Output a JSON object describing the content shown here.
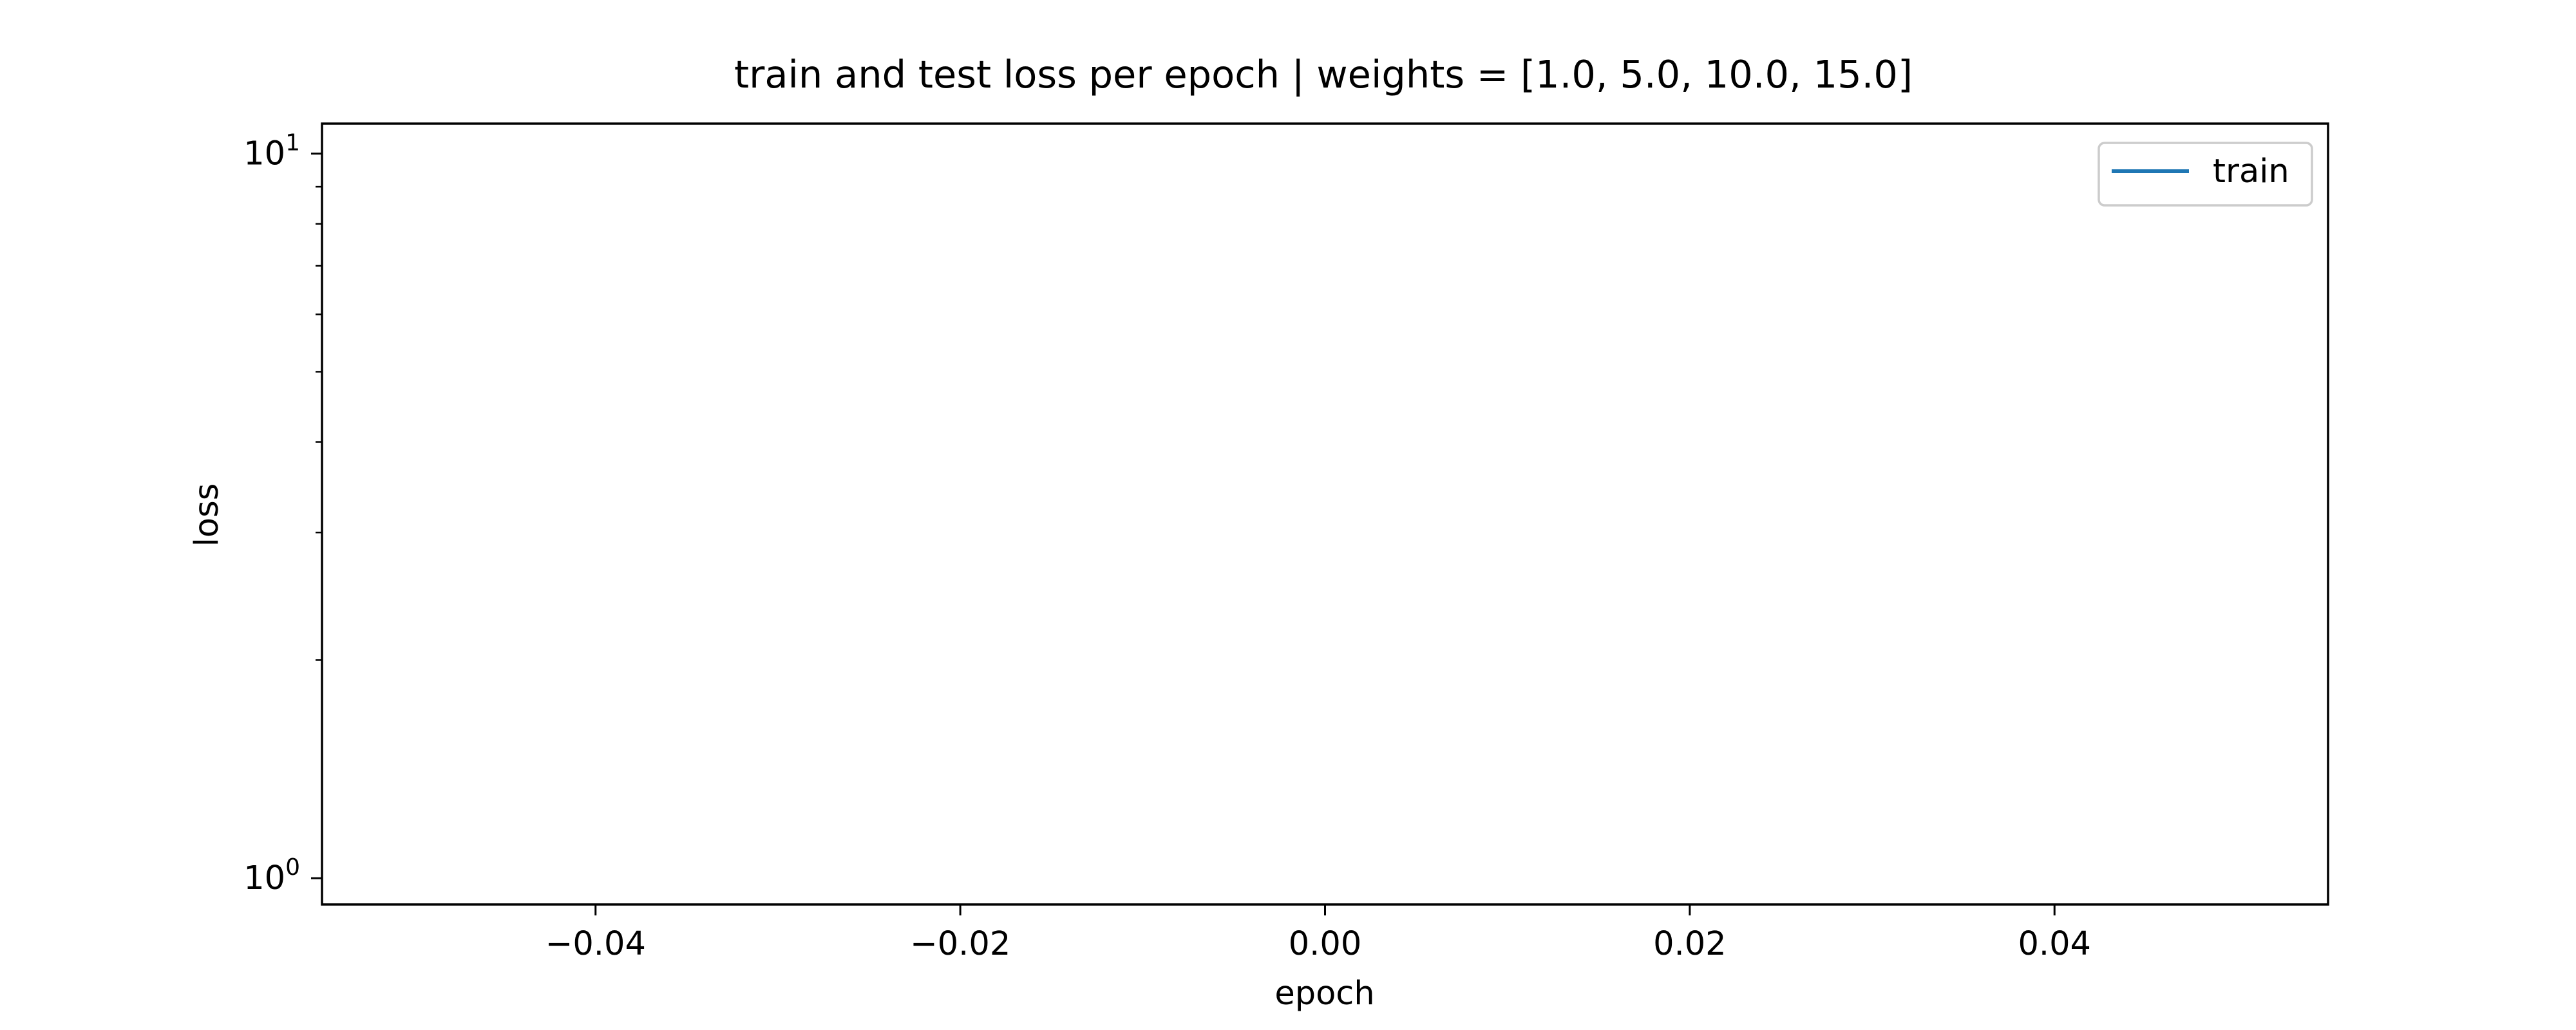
{
  "chart_data": {
    "type": "line",
    "title": "train and test loss per epoch | weights = [1.0, 5.0, 10.0, 15.0]",
    "xlabel": "epoch",
    "ylabel": "loss",
    "xlim": [
      -0.055,
      0.055
    ],
    "ylim": [
      0.92,
      11.0
    ],
    "yscale": "log",
    "x_ticks": [
      -0.04,
      -0.02,
      0.0,
      0.02,
      0.04
    ],
    "x_tick_labels": [
      "−0.04",
      "−0.02",
      "0.00",
      "0.02",
      "0.04"
    ],
    "y_ticks": [
      {
        "value": 1,
        "base": "10",
        "exp": "0"
      },
      {
        "value": 10,
        "base": "10",
        "exp": "1"
      }
    ],
    "y_minor_ticks": [
      2,
      3,
      4,
      5,
      6,
      7,
      8,
      9
    ],
    "grid": false,
    "legend": {
      "position": "upper right",
      "entries": [
        "train"
      ]
    },
    "series": [
      {
        "name": "train",
        "color": "#1f77b4",
        "x": [],
        "y": []
      }
    ]
  }
}
